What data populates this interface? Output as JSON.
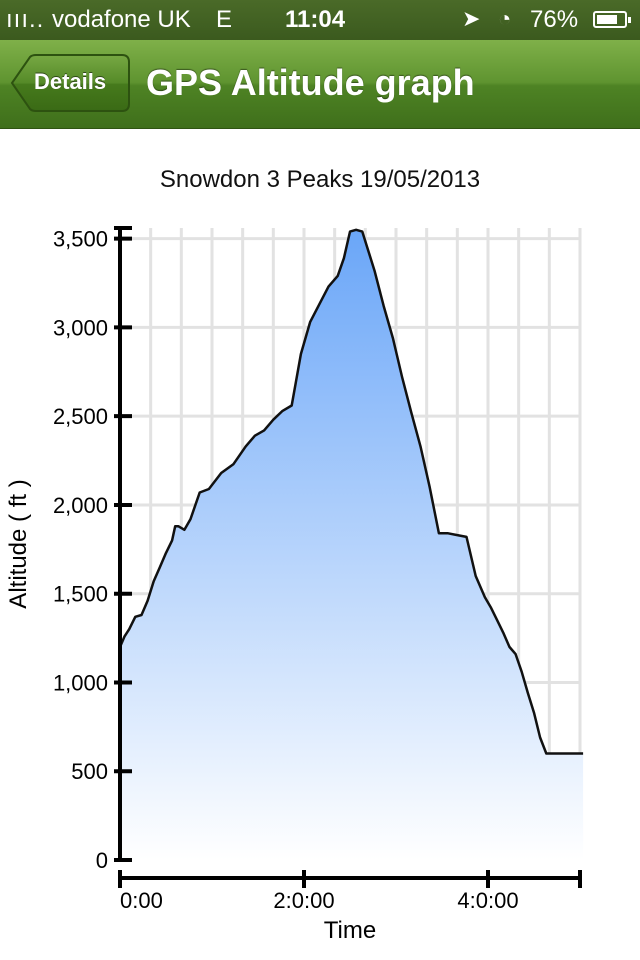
{
  "status_bar": {
    "signal": "ııı..",
    "carrier": "vodafone UK",
    "network": "E",
    "time": "11:04",
    "battery_percent": "76%",
    "battery_level": 0.76,
    "location_icon": "location-arrow-icon",
    "clock_icon": "alarm-clock-icon"
  },
  "nav": {
    "back_label": "Details",
    "title": "GPS Altitude graph",
    "bar_color": "#5f9430"
  },
  "chart_data": {
    "type": "area",
    "title": "Snowdon 3 Peaks 19/05/2013",
    "xlabel": "Time",
    "ylabel": "Altitude ( ft )",
    "xlim": [
      0,
      300
    ],
    "ylim": [
      0,
      3560
    ],
    "x_ticks": [
      {
        "value": 0,
        "label": "0:00"
      },
      {
        "value": 120,
        "label": "2:0:00"
      },
      {
        "value": 240,
        "label": "4:0:00"
      }
    ],
    "y_ticks": [
      {
        "value": 0,
        "label": "0"
      },
      {
        "value": 500,
        "label": "500"
      },
      {
        "value": 1000,
        "label": "1,000"
      },
      {
        "value": 1500,
        "label": "1,500"
      },
      {
        "value": 2000,
        "label": "2,000"
      },
      {
        "value": 2500,
        "label": "2,500"
      },
      {
        "value": 3000,
        "label": "3,000"
      },
      {
        "value": 3500,
        "label": "3,500"
      }
    ],
    "grid": true,
    "fill_color": "#6aa6f8",
    "line_color": "#111111",
    "series": [
      {
        "x": [
          0,
          3,
          6,
          10,
          14,
          18,
          22,
          26,
          30,
          34,
          36,
          38,
          42,
          46,
          52,
          58,
          66,
          74,
          82,
          88,
          94,
          100,
          106,
          112,
          118,
          124,
          130,
          136,
          142,
          146,
          150,
          154,
          158,
          162,
          166,
          172,
          178,
          184,
          190,
          196,
          202,
          208,
          214,
          220,
          226,
          232,
          238,
          242,
          246,
          250,
          254,
          258,
          262,
          266,
          270,
          274,
          278,
          282,
          286,
          290,
          294,
          298,
          302
        ],
        "y": [
          1200,
          1260,
          1300,
          1370,
          1380,
          1460,
          1570,
          1650,
          1730,
          1800,
          1880,
          1880,
          1860,
          1920,
          2070,
          2090,
          2180,
          2230,
          2330,
          2390,
          2420,
          2480,
          2530,
          2560,
          2850,
          3030,
          3130,
          3230,
          3290,
          3390,
          3540,
          3550,
          3540,
          3430,
          3320,
          3120,
          2940,
          2720,
          2520,
          2330,
          2100,
          1840,
          1840,
          1830,
          1820,
          1600,
          1480,
          1420,
          1350,
          1280,
          1200,
          1160,
          1060,
          940,
          830,
          690,
          600,
          600,
          600,
          600,
          600,
          600,
          600
        ]
      }
    ]
  }
}
